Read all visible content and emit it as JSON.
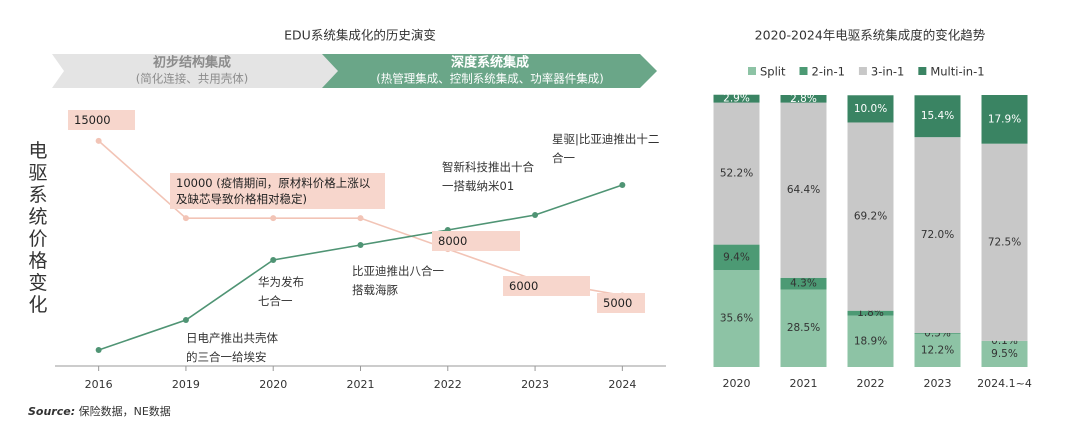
{
  "chart_data": [
    {
      "type": "line",
      "title": "EDU系统集成化的历史演变",
      "y_label": "电驱系统价格变化",
      "phases": [
        {
          "title": "初步结构集成",
          "subtitle": "(简化连接、共用壳体)"
        },
        {
          "title": "深度系统集成",
          "subtitle": "(热管理集成、控制系统集成、功率器件集成)"
        }
      ],
      "categories": [
        "2016",
        "2019",
        "2020",
        "2021",
        "2022",
        "2023",
        "2024"
      ],
      "ylim": [
        500,
        17000
      ],
      "y2lim": [
        0,
        17
      ],
      "series": [
        {
          "color": "#f2c4b6",
          "values": [
            15000,
            10000,
            10000,
            10000,
            8000,
            6000,
            5000
          ],
          "value_labels": [
            "15000",
            "10000 (疫情期间，原材料价格上涨以及缺芯导致价格相对稳定)",
            null,
            null,
            "8000",
            "6000",
            "5000"
          ]
        },
        {
          "color": "#4f9474",
          "axis": "y2",
          "values": [
            1,
            3,
            7,
            8,
            9,
            10,
            12
          ],
          "annotations": [
            null,
            "日电产推出共壳体的三合一给埃安",
            "华为发布七合一",
            "比亚迪推出八合一搭载海豚",
            null,
            "智新科技推出十合一搭载纳米01",
            "星驱|比亚迪推出十二合一"
          ]
        }
      ]
    },
    {
      "type": "stacked_bar",
      "title": "2020-2024年电驱系统集成度的变化趋势",
      "categories": [
        "2020",
        "2021",
        "2022",
        "2023",
        "2024.1~4"
      ],
      "ylim": [
        0,
        100
      ],
      "legend": "top",
      "series": [
        {
          "name": "Split",
          "color": "#8dc3a5",
          "values": [
            35.6,
            28.5,
            18.9,
            12.2,
            9.5
          ],
          "value_labels": [
            "35.6%",
            "28.5%",
            "18.9%",
            "12.2%",
            "9.5%"
          ]
        },
        {
          "name": "2-in-1",
          "color": "#4c9a74",
          "values": [
            9.4,
            4.3,
            1.8,
            0.3,
            0.1
          ],
          "value_labels": [
            "9.4%",
            "4.3%",
            "1.8%",
            "0.3%",
            "0.1%"
          ]
        },
        {
          "name": "3-in-1",
          "color": "#c8c8c8",
          "values": [
            52.2,
            64.4,
            69.2,
            72.0,
            72.5
          ],
          "value_labels": [
            "52.2%",
            "64.4%",
            "69.2%",
            "72.0%",
            "72.5%"
          ]
        },
        {
          "name": "Multi-in-1",
          "color": "#3a8463",
          "values": [
            2.9,
            2.8,
            10.0,
            15.4,
            17.9
          ],
          "value_labels": [
            "2.9%",
            "2.8%",
            "10.0%",
            "15.4%",
            "17.9%"
          ]
        }
      ]
    }
  ],
  "source": {
    "label": "Source:",
    "text": "保险数据，NE数据"
  }
}
